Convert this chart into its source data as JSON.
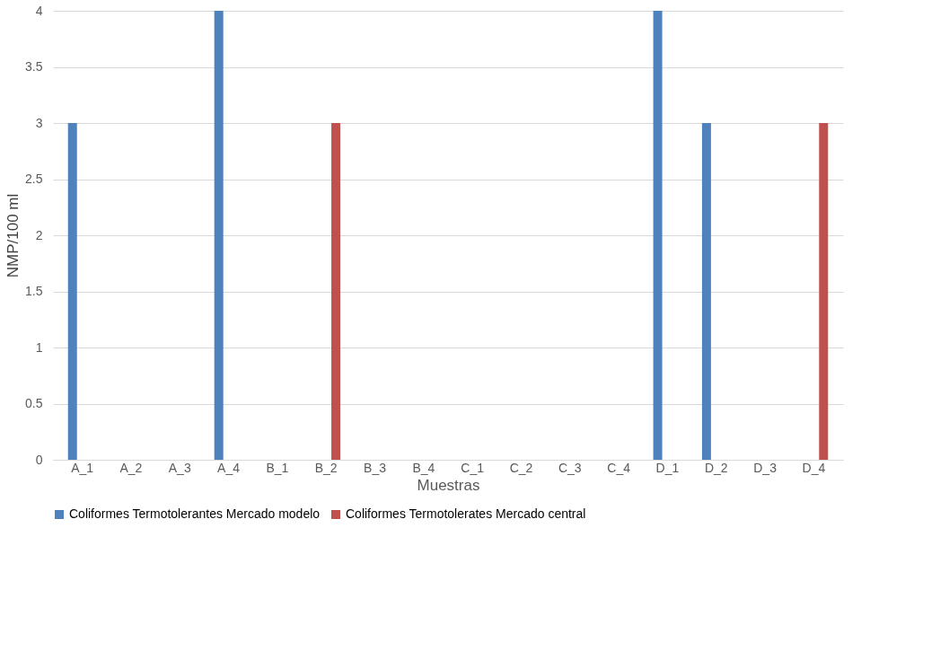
{
  "chart_data": {
    "type": "bar",
    "xlabel": "Muestras",
    "ylabel": "NMP/100 ml",
    "categories": [
      "A_1",
      "A_2",
      "A_3",
      "A_4",
      "B_1",
      "B_2",
      "B_3",
      "B_4",
      "C_1",
      "C_2",
      "C_3",
      "C_4",
      "D_1",
      "D_2",
      "D_3",
      "D_4"
    ],
    "series": [
      {
        "name": "Coliformes Termotolerantes Mercado modelo",
        "color": "#4f81bd",
        "values": [
          3,
          0,
          0,
          4,
          0,
          0,
          0,
          0,
          0,
          0,
          0,
          0,
          4,
          3,
          0,
          0
        ]
      },
      {
        "name": "Coliformes Termotolerates Mercado central",
        "color": "#c0504d",
        "values": [
          0,
          0,
          0,
          0,
          0,
          3,
          0,
          0,
          0,
          0,
          0,
          0,
          0,
          0,
          0,
          3
        ]
      }
    ],
    "ylim": [
      0,
      4
    ],
    "yticks": [
      0,
      0.5,
      1,
      1.5,
      2,
      2.5,
      3,
      3.5,
      4
    ],
    "grid": "y",
    "legend": "bottom"
  }
}
